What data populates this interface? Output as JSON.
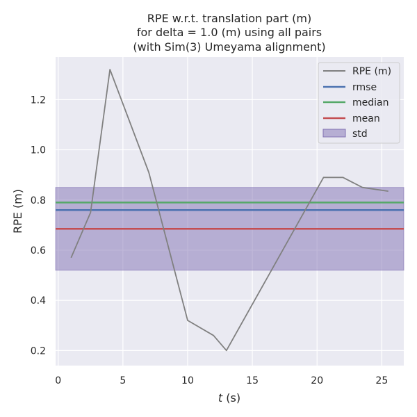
{
  "chart_data": {
    "type": "line",
    "title_lines": [
      "RPE w.r.t. translation part (m)",
      "for delta = 1.0 (m) using all pairs",
      "(with Sim(3) Umeyama alignment)"
    ],
    "xlabel_var": "t",
    "xlabel_unit": " (s)",
    "ylabel": "RPE (m)",
    "xlim": [
      -0.2,
      26.7
    ],
    "ylim": [
      0.14,
      1.37
    ],
    "xticks": [
      0,
      5,
      10,
      15,
      20,
      25
    ],
    "yticks": [
      0.2,
      0.4,
      0.6,
      0.8,
      1.0,
      1.2
    ],
    "ytick_labels": [
      "0.2",
      "0.4",
      "0.6",
      "0.8",
      "1.0",
      "1.2"
    ],
    "grid": true,
    "legend_position": "top-right",
    "series": [
      {
        "name": "RPE (m)",
        "color": "#808080",
        "x": [
          1.0,
          2.5,
          4.0,
          7.0,
          10.0,
          12.0,
          13.0,
          20.5,
          22.0,
          23.5,
          25.5
        ],
        "y": [
          0.57,
          0.75,
          1.32,
          0.91,
          0.32,
          0.26,
          0.2,
          0.89,
          0.89,
          0.85,
          0.835
        ]
      }
    ],
    "hlines": [
      {
        "name": "rmse",
        "color": "#4c72b0",
        "value": 0.76
      },
      {
        "name": "median",
        "color": "#55a868",
        "value": 0.79
      },
      {
        "name": "mean",
        "color": "#c44e52",
        "value": 0.685
      }
    ],
    "band": {
      "name": "std",
      "color": "#8172b3",
      "lower": 0.52,
      "upper": 0.85
    }
  }
}
